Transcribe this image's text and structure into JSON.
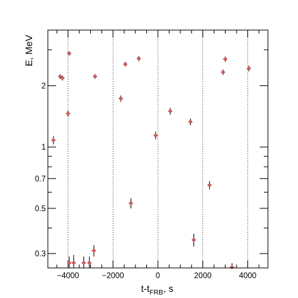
{
  "chart_data": {
    "type": "scatter",
    "title": "",
    "xlabel": {
      "main": "t-t",
      "sub": "FRB",
      "unit": ", s"
    },
    "ylabel": "E, MeV",
    "xlim": [
      -4900,
      4900
    ],
    "ylim": [
      0.255,
      3.75
    ],
    "yscale": "log",
    "grid": false,
    "x_ticks": [
      {
        "value": -4000,
        "label": "−4000"
      },
      {
        "value": -2000,
        "label": "−2000"
      },
      {
        "value": 0,
        "label": "0"
      },
      {
        "value": 2000,
        "label": "2000"
      },
      {
        "value": 4000,
        "label": "4000"
      }
    ],
    "y_ticks": [
      {
        "value": 0.3,
        "label": "0.3"
      },
      {
        "value": 0.5,
        "label": "0.5"
      },
      {
        "value": 0.7,
        "label": "0.7"
      },
      {
        "value": 1,
        "label": "1"
      },
      {
        "value": 2,
        "label": "2"
      }
    ],
    "reference_lines_x": [
      -4000,
      -2000,
      0,
      2000,
      4000
    ],
    "marker_color": "#cd5c5c",
    "errorbar_color": "#000000",
    "points": [
      {
        "x": -4650,
        "y": 1.08,
        "err": 0.05
      },
      {
        "x": -4350,
        "y": 2.22,
        "err": 0.06
      },
      {
        "x": -4250,
        "y": 2.18,
        "err": 0.06
      },
      {
        "x": -4000,
        "y": 1.46,
        "err": 0.05
      },
      {
        "x": -3950,
        "y": 2.88,
        "err": 0.07
      },
      {
        "x": -3950,
        "y": 0.27,
        "err": 0.02
      },
      {
        "x": -3750,
        "y": 0.27,
        "err": 0.025
      },
      {
        "x": -3300,
        "y": 0.27,
        "err": 0.02
      },
      {
        "x": -3050,
        "y": 0.27,
        "err": 0.02
      },
      {
        "x": -2850,
        "y": 0.31,
        "err": 0.02
      },
      {
        "x": -2800,
        "y": 2.22,
        "err": 0.06
      },
      {
        "x": -1650,
        "y": 1.73,
        "err": 0.06
      },
      {
        "x": -1450,
        "y": 2.55,
        "err": 0.07
      },
      {
        "x": -1200,
        "y": 0.53,
        "err": 0.03
      },
      {
        "x": -850,
        "y": 2.72,
        "err": 0.08
      },
      {
        "x": -100,
        "y": 1.14,
        "err": 0.05
      },
      {
        "x": 550,
        "y": 1.5,
        "err": 0.06
      },
      {
        "x": 1450,
        "y": 1.33,
        "err": 0.05
      },
      {
        "x": 1600,
        "y": 0.35,
        "err": 0.025
      },
      {
        "x": 2300,
        "y": 0.65,
        "err": 0.03
      },
      {
        "x": 2900,
        "y": 2.33,
        "err": 0.07
      },
      {
        "x": 3000,
        "y": 2.7,
        "err": 0.08
      },
      {
        "x": 3300,
        "y": 0.257,
        "err": 0.012
      },
      {
        "x": 4050,
        "y": 2.43,
        "err": 0.08
      }
    ]
  }
}
